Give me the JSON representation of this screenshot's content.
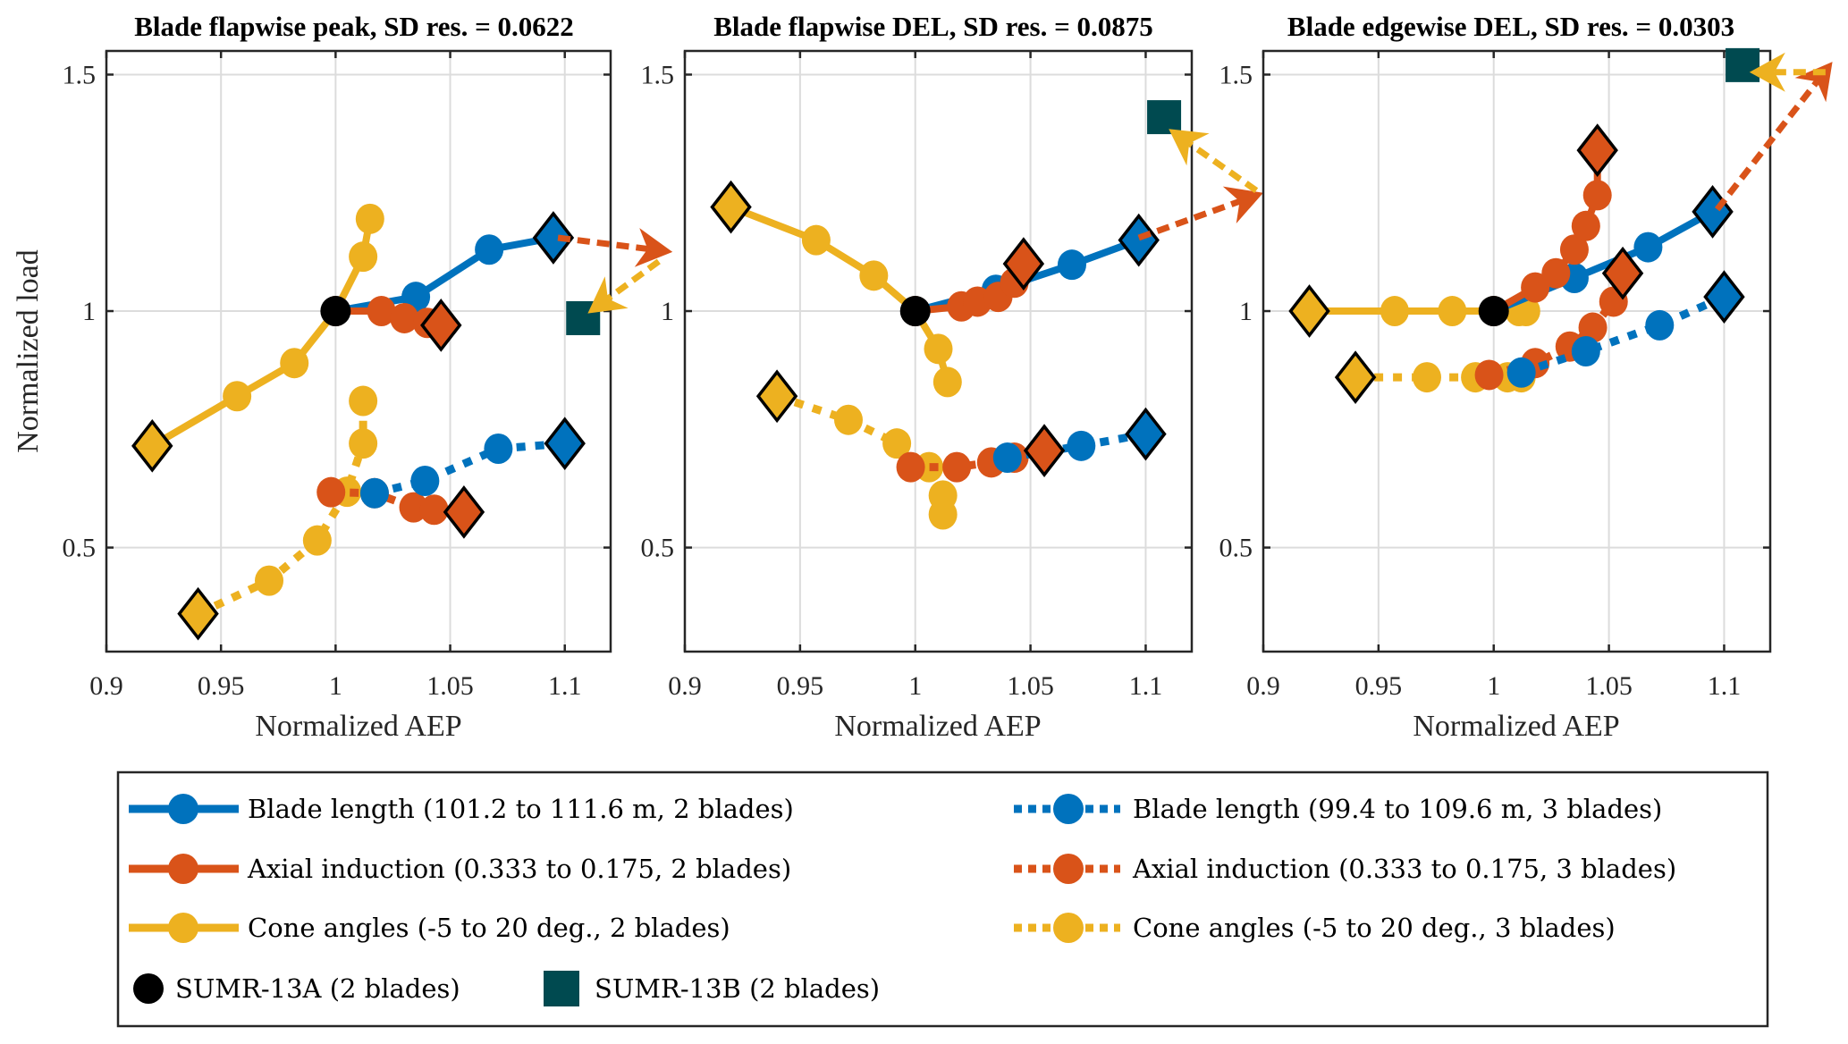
{
  "figure": {
    "ylabel": "Normalized load",
    "colors": {
      "blade_length": "#0072BD",
      "axial_induction": "#D95319",
      "cone_angles": "#EDB120",
      "sumr13a": "#000000",
      "sumr13b": "#004A50",
      "marker_edge": "#000000"
    }
  },
  "legend": {
    "items": [
      {
        "key": "blade_2",
        "label": "Blade  length (101.2 to 111.6 m, 2 blades)",
        "color": "#0072BD",
        "style": "solid",
        "marker": "circle"
      },
      {
        "key": "blade_3",
        "label": "Blade  length (99.4 to 109.6 m, 3 blades)",
        "color": "#0072BD",
        "style": "dotted",
        "marker": "circle"
      },
      {
        "key": "axial_2",
        "label": "Axial induction (0.333 to 0.175, 2 blades)",
        "color": "#D95319",
        "style": "solid",
        "marker": "circle"
      },
      {
        "key": "axial_3",
        "label": "Axial induction (0.333 to 0.175, 3 blades)",
        "color": "#D95319",
        "style": "dotted",
        "marker": "circle"
      },
      {
        "key": "cone_2",
        "label": "Cone  angles (-5 to 20 deg., 2 blades)",
        "color": "#EDB120",
        "style": "solid",
        "marker": "circle"
      },
      {
        "key": "cone_3",
        "label": "Cone  angles (-5 to 20 deg., 3 blades)",
        "color": "#EDB120",
        "style": "dotted",
        "marker": "circle"
      },
      {
        "key": "sumr13a",
        "label": "SUMR-13A (2 blades)",
        "color": "#000000",
        "style": "none",
        "marker": "circle"
      },
      {
        "key": "sumr13b",
        "label": "SUMR-13B (2 blades)",
        "color": "#004A50",
        "style": "none",
        "marker": "square"
      }
    ]
  },
  "chart_data": [
    {
      "type": "line",
      "title": "Blade flapwise peak, SD res. = 0.0622",
      "xlabel": "Normalized AEP",
      "ylabel": "Normalized load",
      "xlim": [
        0.9,
        1.12
      ],
      "ylim": [
        0.28,
        1.55
      ],
      "xticks": [
        0.9,
        0.95,
        1,
        1.05,
        1.1
      ],
      "xtick_labels": [
        "0.9",
        "0.95",
        "1",
        "1.05",
        "1.1"
      ],
      "yticks": [
        0.5,
        1,
        1.5
      ],
      "ytick_labels": [
        "0.5",
        "1",
        "1.5"
      ],
      "grid": true,
      "series": [
        {
          "key": "cone_2",
          "name": "Cone angles (-5 to 20 deg., 2 blades)",
          "x": [
            0.92,
            0.957,
            0.982,
            1.0,
            1.012,
            1.015
          ],
          "y": [
            0.715,
            0.82,
            0.89,
            1.0,
            1.115,
            1.195
          ],
          "end_marker": "first"
        },
        {
          "key": "blade_2",
          "name": "Blade length (101.2 to 111.6 m, 2 blades)",
          "x": [
            1.0,
            1.035,
            1.067,
            1.095
          ],
          "y": [
            1.0,
            1.03,
            1.13,
            1.155
          ],
          "end_marker": "last"
        },
        {
          "key": "axial_2",
          "name": "Axial induction (0.333 to 0.175, 2 blades)",
          "x": [
            1.0,
            1.02,
            1.03,
            1.04,
            1.046
          ],
          "y": [
            1.0,
            1.0,
            0.985,
            0.975,
            0.97
          ],
          "end_marker": "last"
        },
        {
          "key": "cone_3",
          "name": "Cone angles (-5 to 20 deg., 3 blades)",
          "x": [
            0.94,
            0.971,
            0.992,
            1.005,
            1.012,
            1.012
          ],
          "y": [
            0.36,
            0.43,
            0.515,
            0.618,
            0.72,
            0.81
          ],
          "end_marker": "first"
        },
        {
          "key": "axial_3",
          "name": "Axial induction (0.333 to 0.175, 3 blades)",
          "x": [
            0.998,
            1.017,
            1.034,
            1.043,
            1.056
          ],
          "y": [
            0.617,
            0.615,
            0.585,
            0.58,
            0.575
          ],
          "end_marker": "last"
        },
        {
          "key": "blade_3",
          "name": "Blade length (99.4 to 109.6 m, 3 blades)",
          "x": [
            1.017,
            1.039,
            1.071,
            1.1
          ],
          "y": [
            0.615,
            0.641,
            0.709,
            0.72
          ],
          "end_marker": "last"
        }
      ],
      "points": [
        {
          "key": "sumr13a",
          "x": 1.0,
          "y": 1.0
        },
        {
          "key": "sumr13b",
          "x": 1.108,
          "y": 0.985
        }
      ],
      "arrows": [
        {
          "color_key": "axial_induction",
          "from": [
            1.097,
            1.155
          ],
          "to_px_outside": "right",
          "to": [
            1.147,
            1.125
          ]
        },
        {
          "color_key": "cone_angles",
          "from": [
            1.141,
            1.105
          ],
          "to": [
            1.11,
            0.995
          ]
        }
      ]
    },
    {
      "type": "line",
      "title": "Blade flapwise DEL, SD res. = 0.0875",
      "xlabel": "Normalized AEP",
      "ylabel": "",
      "xlim": [
        0.9,
        1.12
      ],
      "ylim": [
        0.28,
        1.55
      ],
      "xticks": [
        0.9,
        0.95,
        1,
        1.05,
        1.1
      ],
      "xtick_labels": [
        "0.9",
        "0.95",
        "1",
        "1.05",
        "1.1"
      ],
      "yticks": [
        0.5,
        1,
        1.5
      ],
      "ytick_labels": [
        "0.5",
        "1",
        "1.5"
      ],
      "grid": true,
      "series": [
        {
          "key": "cone_2",
          "name": "Cone angles (-5 to 20 deg., 2 blades)",
          "x": [
            0.92,
            0.957,
            0.982,
            1.0,
            1.01,
            1.014
          ],
          "y": [
            1.22,
            1.15,
            1.075,
            1.0,
            0.92,
            0.85
          ],
          "end_marker": "first"
        },
        {
          "key": "blade_2",
          "name": "Blade length (101.2 to 111.6 m, 2 blades)",
          "x": [
            1.0,
            1.035,
            1.068,
            1.097
          ],
          "y": [
            1.0,
            1.045,
            1.098,
            1.15
          ],
          "end_marker": "last"
        },
        {
          "key": "axial_2",
          "name": "Axial induction (0.333 to 0.175, 2 blades)",
          "x": [
            1.0,
            1.02,
            1.027,
            1.036,
            1.043,
            1.047
          ],
          "y": [
            1.0,
            1.01,
            1.02,
            1.03,
            1.06,
            1.1
          ],
          "end_marker": "last"
        },
        {
          "key": "cone_3",
          "name": "Cone angles (-5 to 20 deg., 3 blades)",
          "x": [
            0.94,
            0.971,
            0.992,
            1.006,
            1.012,
            1.012
          ],
          "y": [
            0.82,
            0.77,
            0.72,
            0.67,
            0.61,
            0.57
          ],
          "end_marker": "first"
        },
        {
          "key": "axial_3",
          "name": "Axial induction (0.333 to 0.175, 3 blades)",
          "x": [
            0.998,
            1.018,
            1.033,
            1.043,
            1.056
          ],
          "y": [
            0.67,
            0.67,
            0.68,
            0.69,
            0.705
          ],
          "end_marker": "last"
        },
        {
          "key": "blade_3",
          "name": "Blade length (99.4 to 109.6 m, 3 blades)",
          "x": [
            1.04,
            1.072,
            1.1
          ],
          "y": [
            0.69,
            0.715,
            0.74
          ],
          "end_marker": "last"
        }
      ],
      "points": [
        {
          "key": "sumr13a",
          "x": 1.0,
          "y": 1.0
        },
        {
          "key": "sumr13b",
          "x": 1.108,
          "y": 1.41
        }
      ],
      "arrows": [
        {
          "color_key": "axial_induction",
          "from": [
            1.097,
            1.155
          ],
          "to": [
            1.151,
            1.25
          ]
        },
        {
          "color_key": "cone_angles",
          "from": [
            1.148,
            1.255
          ],
          "to": [
            1.11,
            1.385
          ]
        }
      ]
    },
    {
      "type": "line",
      "title": "Blade edgewise DEL, SD res. = 0.0303",
      "xlabel": "Normalized AEP",
      "ylabel": "",
      "xlim": [
        0.9,
        1.12
      ],
      "ylim": [
        0.28,
        1.55
      ],
      "xticks": [
        0.9,
        0.95,
        1,
        1.05,
        1.1
      ],
      "xtick_labels": [
        "0.9",
        "0.95",
        "1",
        "1.05",
        "1.1"
      ],
      "yticks": [
        0.5,
        1,
        1.5
      ],
      "ytick_labels": [
        "0.5",
        "1",
        "1.5"
      ],
      "grid": true,
      "series": [
        {
          "key": "cone_2",
          "name": "Cone angles (-5 to 20 deg., 2 blades)",
          "x": [
            0.92,
            0.957,
            0.982,
            1.0,
            1.011,
            1.014
          ],
          "y": [
            1.0,
            1.0,
            1.0,
            1.0,
            1.0,
            1.0
          ],
          "end_marker": "first"
        },
        {
          "key": "blade_2",
          "name": "Blade length (101.2 to 111.6 m, 2 blades)",
          "x": [
            1.0,
            1.035,
            1.067,
            1.095
          ],
          "y": [
            1.0,
            1.07,
            1.135,
            1.21
          ],
          "end_marker": "last"
        },
        {
          "key": "axial_2",
          "name": "Axial induction (0.333 to 0.175, 2 blades)",
          "x": [
            1.0,
            1.018,
            1.027,
            1.035,
            1.04,
            1.045,
            1.045
          ],
          "y": [
            1.0,
            1.05,
            1.08,
            1.13,
            1.18,
            1.245,
            1.34
          ],
          "end_marker": "last"
        },
        {
          "key": "cone_3",
          "name": "Cone angles (-5 to 20 deg., 3 blades)",
          "x": [
            0.94,
            0.971,
            0.992,
            1.006,
            1.012
          ],
          "y": [
            0.86,
            0.86,
            0.86,
            0.86,
            0.86
          ],
          "end_marker": "first"
        },
        {
          "key": "axial_3",
          "name": "Axial induction (0.333 to 0.175, 3 blades)",
          "x": [
            0.998,
            1.018,
            1.033,
            1.043,
            1.052,
            1.056
          ],
          "y": [
            0.865,
            0.89,
            0.925,
            0.965,
            1.02,
            1.08
          ],
          "end_marker": "last"
        },
        {
          "key": "blade_3",
          "name": "Blade length (99.4 to 109.6 m, 3 blades)",
          "x": [
            1.012,
            1.04,
            1.072,
            1.1
          ],
          "y": [
            0.87,
            0.915,
            0.97,
            1.03
          ],
          "end_marker": "last"
        }
      ],
      "points": [
        {
          "key": "sumr13a",
          "x": 1.0,
          "y": 1.0
        },
        {
          "key": "sumr13b",
          "x": 1.108,
          "y": 1.52
        }
      ],
      "arrows": [
        {
          "color_key": "axial_induction",
          "from": [
            1.097,
            1.215
          ],
          "to": [
            1.147,
            1.527
          ]
        },
        {
          "color_key": "cone_angles",
          "from": [
            1.144,
            1.505
          ],
          "to": [
            1.111,
            1.505
          ]
        }
      ]
    }
  ]
}
